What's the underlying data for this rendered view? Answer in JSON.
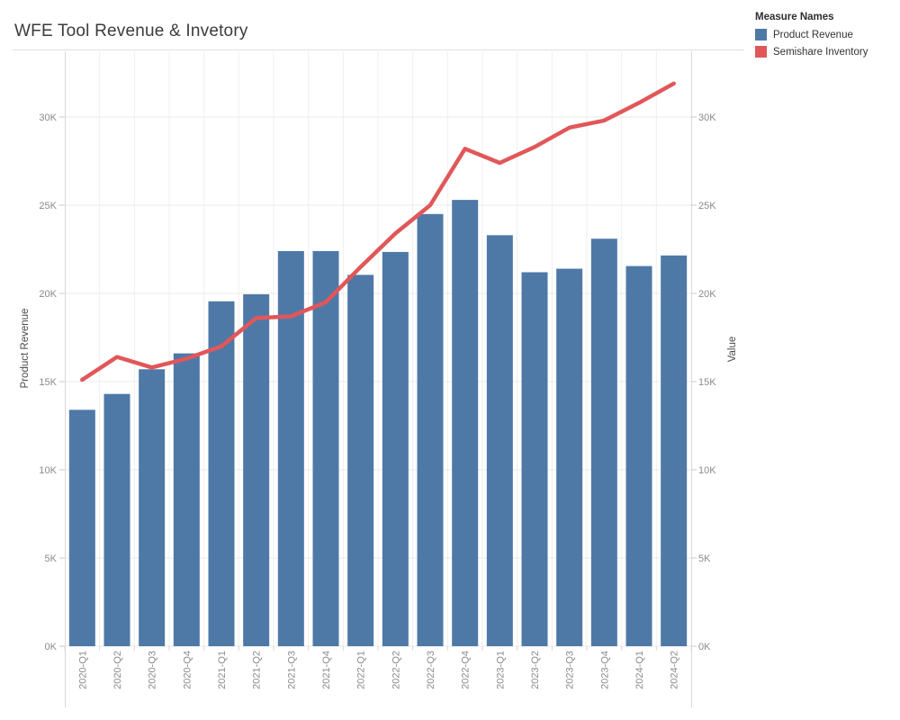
{
  "header": {
    "title": "WFE Tool Revenue & Invetory"
  },
  "legend": {
    "title": "Measure Names",
    "items": [
      {
        "label": "Product Revenue",
        "color": "#4e79a7"
      },
      {
        "label": "Semishare Inventory",
        "color": "#e15759"
      }
    ]
  },
  "chart_data": {
    "type": "combo-bar-line",
    "title": "WFE Tool Revenue & Invetory",
    "categories": [
      "2020-Q1",
      "2020-Q2",
      "2020-Q3",
      "2020-Q4",
      "2021-Q1",
      "2021-Q2",
      "2021-Q3",
      "2021-Q4",
      "2022-Q1",
      "2022-Q2",
      "2022-Q3",
      "2022-Q4",
      "2023-Q1",
      "2023-Q2",
      "2023-Q3",
      "2023-Q4",
      "2024-Q1",
      "2024-Q2"
    ],
    "series": [
      {
        "name": "Product Revenue",
        "type": "bar",
        "axis": "left",
        "color": "#4e79a7",
        "values": [
          13400,
          14300,
          15700,
          16600,
          19550,
          19950,
          22400,
          22400,
          21050,
          22350,
          24500,
          25300,
          23300,
          21200,
          21400,
          23100,
          21550,
          22150
        ]
      },
      {
        "name": "Semishare Inventory",
        "type": "line",
        "axis": "right",
        "color": "#e15759",
        "values": [
          15100,
          16400,
          15800,
          16300,
          17000,
          18600,
          18700,
          19500,
          21500,
          23400,
          25000,
          28200,
          27400,
          28300,
          29400,
          29800,
          30800,
          31900
        ]
      }
    ],
    "left_axis": {
      "title": "Product Revenue",
      "tick_values": [
        0,
        5000,
        10000,
        15000,
        20000,
        25000,
        30000
      ],
      "tick_labels": [
        "0K",
        "5K",
        "10K",
        "15K",
        "20K",
        "25K",
        "30K"
      ],
      "range": [
        0,
        33700
      ]
    },
    "right_axis": {
      "title": "Value",
      "tick_values": [
        0,
        5000,
        10000,
        15000,
        20000,
        25000,
        30000
      ],
      "tick_labels": [
        "0K",
        "5K",
        "10K",
        "15K",
        "20K",
        "25K",
        "30K"
      ],
      "range": [
        0,
        33700
      ]
    },
    "grid": true,
    "legend_position": "top-right"
  },
  "style": {
    "bar_color": "#4e79a7",
    "line_color": "#e15759",
    "grid_color": "#e9e9e9",
    "column_divider_color": "#efefef",
    "border_color": "#d9d9d9",
    "tick_mark_color": "#c9c9c9",
    "tick_text_color": "#8a8a8a",
    "axis_title_color": "#4a4a4a",
    "title_color": "#3b3b3b",
    "background": "#ffffff"
  }
}
